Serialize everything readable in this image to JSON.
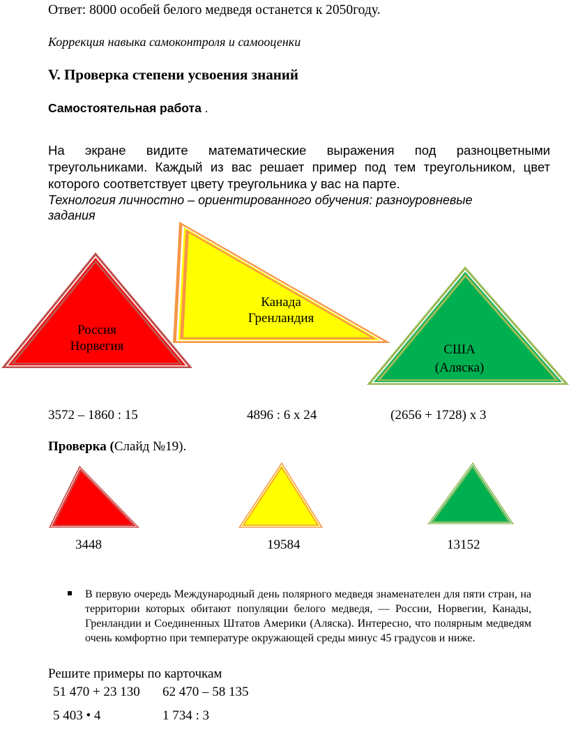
{
  "answer": "Ответ: 8000 особей белого медведя останется к 2050году.",
  "correction": "Коррекция навыка самоконтроля и самооценки",
  "section_title": "V. Проверка степени усвоения знаний",
  "independent_work": "Самостоятельная работа",
  "independent_work_dot": " .",
  "task_paragraph": "На экране видите математические выражения под разноцветными треугольниками. Каждый из вас решает пример под тем треугольником, цвет которого соответствует цвету треугольника у вас на парте.",
  "technology": "Технология личностно – ориентированного обучения: разноуровневые задания",
  "triangles": [
    {
      "line1": "Россия",
      "line2": "Норвегия",
      "outer": "#c0504d",
      "inner": "#c0504d",
      "fill": "#ff0000",
      "thin": "#ff0000"
    },
    {
      "line1": "Канада",
      "line2": "Гренландия",
      "outer": "#f79646",
      "inner": "#f79646",
      "fill": "#ffff00",
      "thin": "#ffff00"
    },
    {
      "line1": "США",
      "line2": "(Аляска)",
      "outer": "#9bbb59",
      "inner": "#9bbb59",
      "fill": "#00b050",
      "thin": "#00b050"
    }
  ],
  "expressions": [
    "3572 – 1860 : 15",
    "4896 : 6 х 24",
    "(2656 + 1728) х 3"
  ],
  "check_bold": "Проверка (",
  "check_rest": "Слайд №19).",
  "answers": [
    "3448",
    "19584",
    "13152"
  ],
  "bullet_text": "В первую очередь Международный день полярного медведя знаменателен для пяти стран, на территории которых обитают популяции белого медведя, — России, Норвегии, Канады, Гренландии и Соединенных Штатов Америки (Аляска). Интересно, что полярным медведям очень комфортно при температуре окружающей среды минус 45 градусов и ниже.",
  "cards_title": "Решите примеры по карточкам",
  "cards": [
    "51 470 + 23 130",
    "62 470 – 58 135",
    "5 403 • 4",
    "1 734 : 3"
  ]
}
